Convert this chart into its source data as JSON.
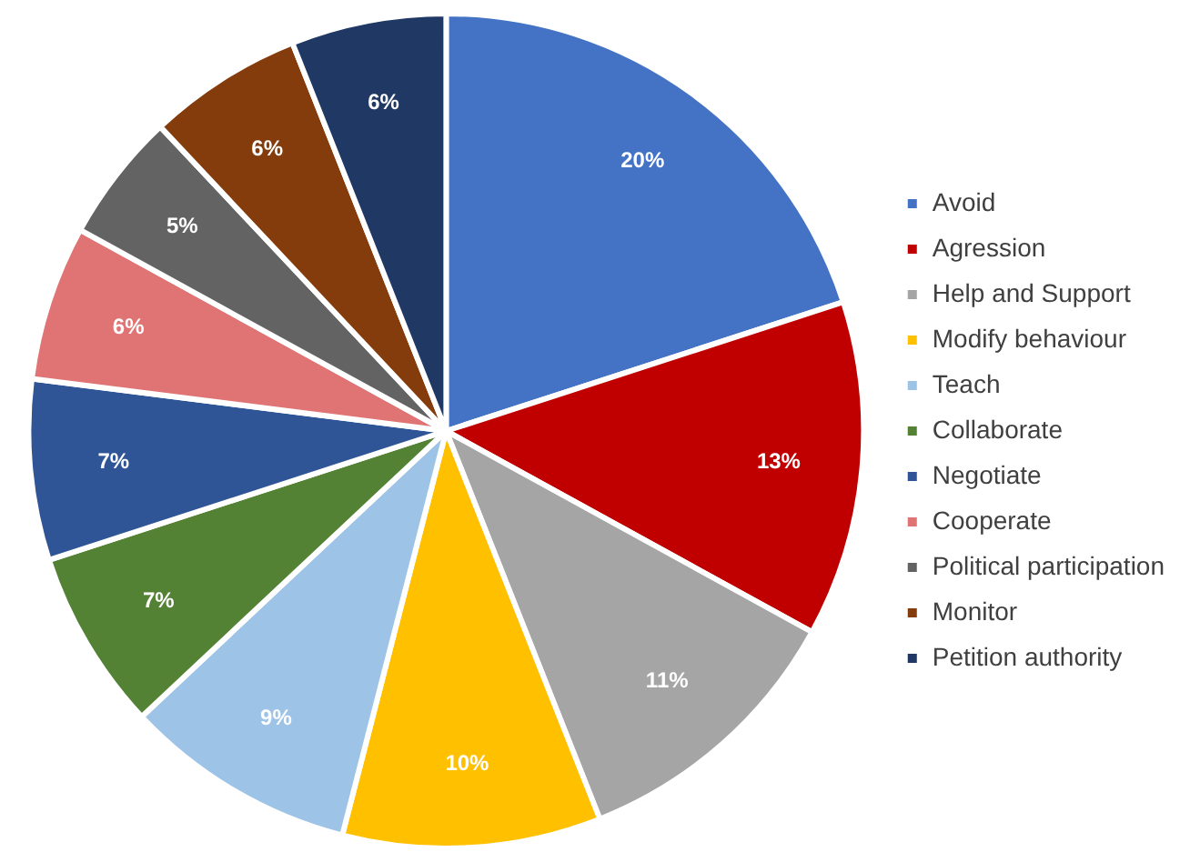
{
  "chart_data": {
    "type": "pie",
    "categories": [
      "Avoid",
      "Agression",
      "Help and Support",
      "Modify behaviour",
      "Teach",
      "Collaborate",
      "Negotiate",
      "Cooperate",
      "Political participation",
      "Monitor",
      "Petition authority"
    ],
    "values": [
      20,
      13,
      11,
      10,
      9,
      7,
      7,
      6,
      5,
      6,
      6
    ],
    "value_labels": [
      "20%",
      "13%",
      "11%",
      "10%",
      "9%",
      "7%",
      "7%",
      "6%",
      "5%",
      "6%",
      "6%"
    ],
    "colors": [
      "#4472c4",
      "#c00000",
      "#a5a5a5",
      "#ffc000",
      "#9dc3e6",
      "#548235",
      "#2f5597",
      "#e07373",
      "#636363",
      "#843c0c",
      "#203864"
    ],
    "legend": "right"
  }
}
